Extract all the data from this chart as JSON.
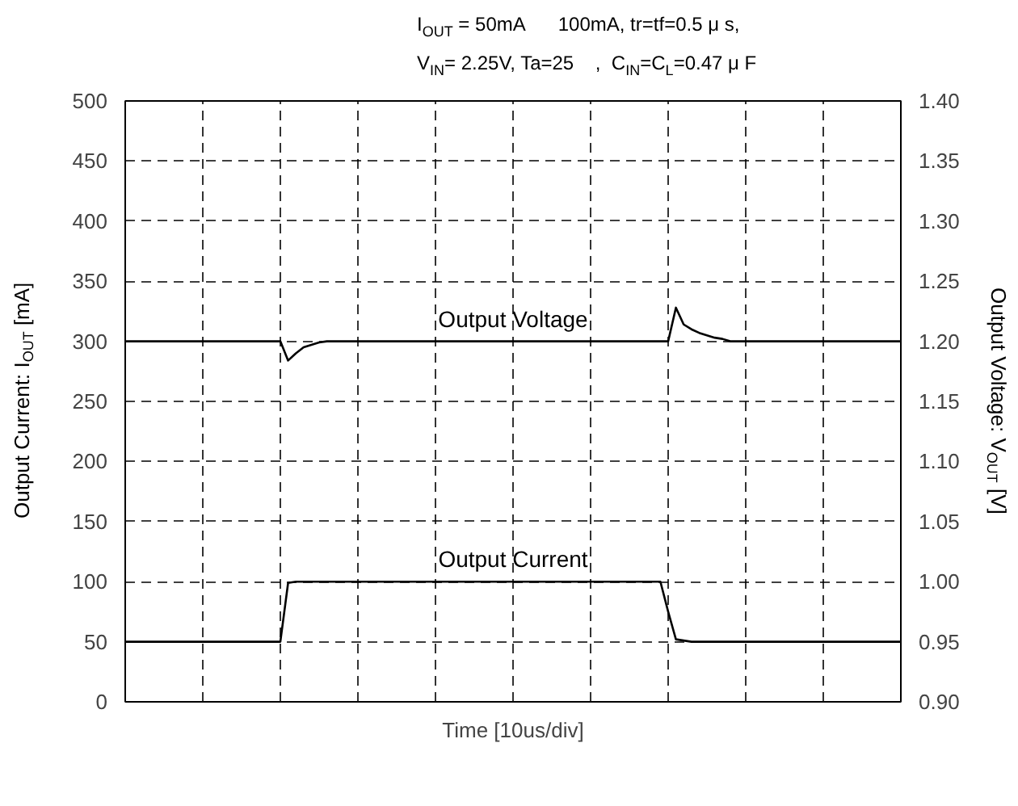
{
  "chart_data": {
    "type": "line",
    "annotations": [
      "I$_{OUT}$ = 50mA      100mA, tr=tf=0.5 μ s,",
      "V$_{IN}$= 2.25V, Ta=25    ,  C$_{IN}$=C$_{L}$=0.47 μ F"
    ],
    "xlabel": "Time [10us/div]",
    "ylabel": "Output Current: I$_{OUT}$ [mA]",
    "y2label": "Output Voltage: V$_{OUT}$ [V]",
    "categories": [
      null,
      null,
      null,
      null,
      null,
      null,
      null,
      null,
      null,
      null,
      null,
      null,
      null,
      null,
      null,
      null,
      null,
      null,
      null,
      null,
      null,
      null,
      null,
      null,
      null,
      null,
      null,
      null,
      null,
      null,
      null,
      null,
      null,
      null,
      null,
      null,
      null,
      null,
      null,
      null,
      null,
      null,
      null,
      null,
      null,
      null,
      null,
      null,
      null,
      null,
      null,
      null,
      null,
      null,
      null,
      null,
      null,
      null,
      null,
      null,
      null,
      null,
      null,
      null,
      null,
      null,
      null,
      null,
      null,
      null,
      null,
      null,
      null,
      null,
      null,
      null,
      null,
      null,
      null,
      null,
      null,
      null,
      null,
      null,
      null,
      null,
      null,
      null,
      null,
      null,
      null,
      null,
      null,
      null,
      null,
      null,
      null,
      null,
      null,
      null,
      null
    ],
    "ylim": [
      0,
      500
    ],
    "yticks": [
      0,
      50,
      100,
      150,
      200,
      250,
      300,
      350,
      400,
      450,
      500
    ],
    "y2lim": [
      0.9,
      1.4
    ],
    "y2ticks": [
      {
        "value": 0.9,
        "label": "0.90"
      },
      {
        "value": 0.95,
        "label": "0.95"
      },
      {
        "value": 1.0,
        "label": "1.00"
      },
      {
        "value": 1.05,
        "label": "1.05"
      },
      {
        "value": 1.1,
        "label": "1.10"
      },
      {
        "value": 1.15,
        "label": "1.15"
      },
      {
        "value": 1.2,
        "label": "1.20"
      },
      {
        "value": 1.25,
        "label": "1.25"
      },
      {
        "value": 1.3,
        "label": "1.30"
      },
      {
        "value": 1.35,
        "label": "1.35"
      },
      {
        "value": 1.4,
        "label": "1.40"
      }
    ],
    "grid": true,
    "marker": "none",
    "line_style": "solid",
    "series": [
      {
        "name": "Output Voltage",
        "color": "#000000",
        "axis": "y2",
        "values": [
          1.2,
          1.2,
          1.2,
          1.2,
          1.2,
          1.2,
          1.2,
          1.2,
          1.2,
          1.2,
          1.2,
          1.2,
          1.2,
          1.2,
          1.2,
          1.2,
          1.2,
          1.2,
          1.2,
          1.2,
          1.2,
          1.184,
          1.19,
          1.195,
          1.197,
          1.199,
          1.2,
          1.2,
          1.2,
          1.2,
          1.2,
          1.2,
          1.2,
          1.2,
          1.2,
          1.2,
          1.2,
          1.2,
          1.2,
          1.2,
          1.2,
          1.2,
          1.2,
          1.2,
          1.2,
          1.2,
          1.2,
          1.2,
          1.2,
          1.2,
          1.2,
          1.2,
          1.2,
          1.2,
          1.2,
          1.2,
          1.2,
          1.2,
          1.2,
          1.2,
          1.2,
          1.2,
          1.2,
          1.2,
          1.2,
          1.2,
          1.2,
          1.2,
          1.2,
          1.2,
          1.2,
          1.228,
          1.214,
          1.21,
          1.207,
          1.205,
          1.203,
          1.202,
          1.2,
          1.2,
          1.2,
          1.2,
          1.2,
          1.2,
          1.2,
          1.2,
          1.2,
          1.2,
          1.2,
          1.2,
          1.2,
          1.2,
          1.2,
          1.2,
          1.2,
          1.2,
          1.2,
          1.2,
          1.2,
          1.2,
          1.2
        ]
      },
      {
        "name": "Output Current",
        "color": "#000000",
        "values": [
          50,
          50,
          50,
          50,
          50,
          50,
          50,
          50,
          50,
          50,
          50,
          50,
          50,
          50,
          50,
          50,
          50,
          50,
          50,
          50,
          50,
          99,
          100,
          100,
          100,
          100,
          100,
          100,
          100,
          100,
          100,
          100,
          100,
          100,
          100,
          100,
          100,
          100,
          100,
          100,
          100,
          100,
          100,
          100,
          100,
          100,
          100,
          100,
          100,
          100,
          100,
          100,
          100,
          100,
          100,
          100,
          100,
          100,
          100,
          100,
          100,
          100,
          100,
          100,
          100,
          100,
          100,
          100,
          100,
          100,
          75,
          52,
          51,
          50,
          50,
          50,
          50,
          50,
          50,
          50,
          50,
          50,
          50,
          50,
          50,
          50,
          50,
          50,
          50,
          50,
          50,
          50,
          50,
          50,
          50,
          50,
          50,
          50,
          50,
          50,
          50
        ]
      }
    ]
  }
}
